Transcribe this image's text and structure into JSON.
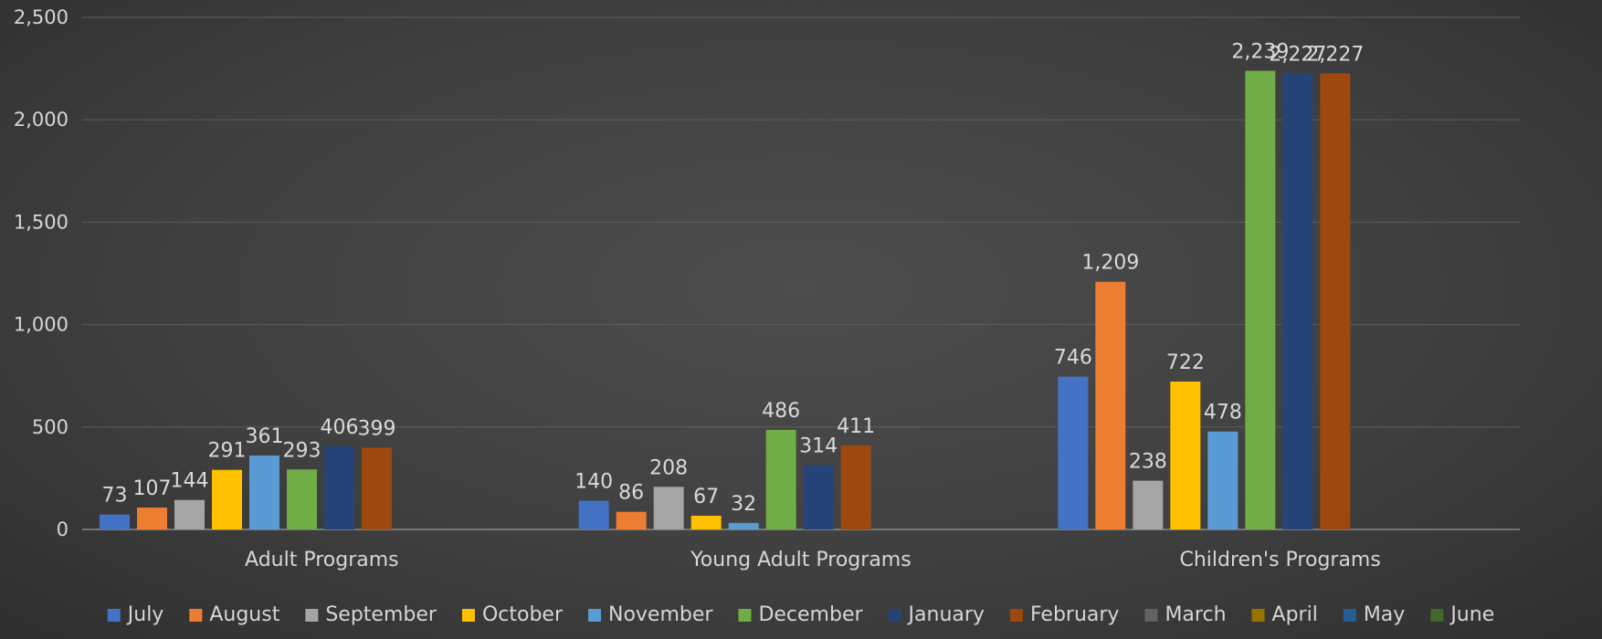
{
  "chart_data": {
    "type": "bar",
    "title": "",
    "xlabel": "",
    "ylabel": "",
    "ylim": [
      0,
      2500
    ],
    "yticks": [
      0,
      500,
      1000,
      1500,
      2000,
      2500
    ],
    "ytick_labels": [
      "0",
      "500",
      "1,000",
      "1,500",
      "2,000",
      "2,500"
    ],
    "grid": true,
    "legend_position": "bottom",
    "categories": [
      "Adult Programs",
      "Young Adult Programs",
      "Children's Programs"
    ],
    "series": [
      {
        "name": "July",
        "color": "#4472C4",
        "values": [
          73,
          140,
          746
        ],
        "labels": [
          "73",
          "140",
          "746"
        ]
      },
      {
        "name": "August",
        "color": "#ED7D31",
        "values": [
          107,
          86,
          1209
        ],
        "labels": [
          "107",
          "86",
          "1,209"
        ]
      },
      {
        "name": "September",
        "color": "#A5A5A5",
        "values": [
          144,
          208,
          238
        ],
        "labels": [
          "144",
          "208",
          "238"
        ]
      },
      {
        "name": "October",
        "color": "#FFC000",
        "values": [
          291,
          67,
          722
        ],
        "labels": [
          "291",
          "67",
          "722"
        ]
      },
      {
        "name": "November",
        "color": "#5B9BD5",
        "values": [
          361,
          32,
          478
        ],
        "labels": [
          "361",
          "32",
          "478"
        ]
      },
      {
        "name": "December",
        "color": "#70AD47",
        "values": [
          293,
          486,
          2239
        ],
        "labels": [
          "293",
          "486",
          "2,239"
        ]
      },
      {
        "name": "January",
        "color": "#264478",
        "values": [
          406,
          314,
          2227
        ],
        "labels": [
          "406",
          "314",
          "2,227"
        ]
      },
      {
        "name": "February",
        "color": "#9E480E",
        "values": [
          399,
          411,
          2227
        ],
        "labels": [
          "399",
          "411",
          "2,227"
        ]
      },
      {
        "name": "March",
        "color": "#636363",
        "values": [
          null,
          null,
          null
        ],
        "labels": [
          "",
          "",
          ""
        ]
      },
      {
        "name": "April",
        "color": "#997300",
        "values": [
          null,
          null,
          null
        ],
        "labels": [
          "",
          "",
          ""
        ]
      },
      {
        "name": "May",
        "color": "#255E91",
        "values": [
          null,
          null,
          null
        ],
        "labels": [
          "",
          "",
          ""
        ]
      },
      {
        "name": "June",
        "color": "#43682B",
        "values": [
          null,
          null,
          null
        ],
        "labels": [
          "",
          "",
          ""
        ]
      }
    ]
  }
}
